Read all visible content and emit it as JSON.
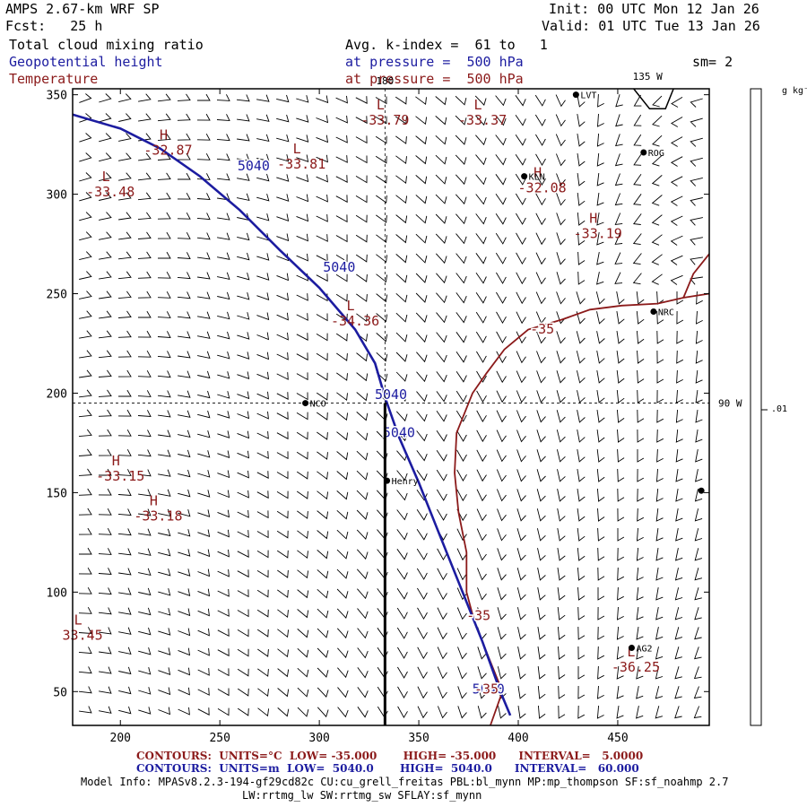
{
  "header": {
    "model": "AMPS 2.67-km WRF SP",
    "fcst": "Fcst:   25 h",
    "init": "Init: 00 UTC Mon 12 Jan 26",
    "valid": "Valid: 01 UTC Tue 13 Jan 26",
    "field1": "Total cloud mixing ratio",
    "field2": "Geopotential height",
    "field3": "Temperature",
    "avg": "Avg. k-index =  61 to   1",
    "pres1": "at pressure =  500 hPa",
    "pres2": "at pressure =  500 hPa",
    "sm": "sm= 2"
  },
  "footer": {
    "temp": "CONTOURS:  UNITS=°C  LOW= -35.000       HIGH= -35.000      INTERVAL=   5.0000",
    "height": "CONTOURS:  UNITS=m  LOW=  5040.0       HIGH=  5040.0      INTERVAL=   60.000",
    "info1": "Model Info: MPASv8.2.3-194-gf29cd82c CU:cu_grell_freitas PBL:bl_mynn MP:mp_thompson SF:sf_noahmp 2.7",
    "info2": "LW:rrtmg_lw SW:rrtmg_sw SFLAY:sf_mynn"
  },
  "colorbar": {
    "units": "g kg⁻¹",
    "tick_label": ".01"
  },
  "chart_data": {
    "type": "contour-map",
    "title": "Total cloud mixing ratio / Geopotential height / Temperature at 500 hPa",
    "xlim": [
      176,
      496
    ],
    "ylim": [
      33,
      353
    ],
    "x_ticks": [
      200,
      250,
      300,
      350,
      400,
      450
    ],
    "y_ticks": [
      50,
      100,
      150,
      200,
      250,
      300,
      350
    ],
    "meridian_labels": [
      {
        "text": "180",
        "x": 333,
        "y": 353
      },
      {
        "text": "135 W",
        "x": 465,
        "y": 353
      },
      {
        "text": "90 W",
        "x": 496,
        "y": 195
      }
    ],
    "crosshair": {
      "x": 333,
      "y": 195
    },
    "cross_section": {
      "x": 333,
      "y_from": 195,
      "y_to": 33
    },
    "height_contour": {
      "level": 5040,
      "points": [
        [
          176,
          340
        ],
        [
          200,
          333
        ],
        [
          220,
          323
        ],
        [
          240,
          309
        ],
        [
          260,
          292
        ],
        [
          280,
          272
        ],
        [
          300,
          253
        ],
        [
          318,
          232
        ],
        [
          328,
          215
        ],
        [
          333,
          198
        ],
        [
          340,
          178
        ],
        [
          350,
          155
        ],
        [
          360,
          130
        ],
        [
          372,
          100
        ],
        [
          382,
          75
        ],
        [
          391,
          50
        ],
        [
          396,
          38
        ]
      ],
      "labels": [
        {
          "text": "5040",
          "x": 267,
          "y": 312
        },
        {
          "text": "5040",
          "x": 310,
          "y": 261
        },
        {
          "text": "5040",
          "x": 336,
          "y": 197
        },
        {
          "text": "5040",
          "x": 340,
          "y": 178
        },
        {
          "text": "5040",
          "x": 385,
          "y": 49
        }
      ]
    },
    "temp_contours": [
      {
        "level": -35,
        "points": [
          [
            386,
            33
          ],
          [
            392,
            50
          ],
          [
            384,
            70
          ],
          [
            378,
            85
          ],
          [
            374,
            100
          ],
          [
            374,
            120
          ],
          [
            370,
            140
          ],
          [
            368,
            160
          ],
          [
            369,
            180
          ],
          [
            373,
            190
          ],
          [
            377,
            200
          ],
          [
            384,
            210
          ],
          [
            393,
            222
          ],
          [
            405,
            232
          ],
          [
            422,
            237
          ],
          [
            436,
            242
          ],
          [
            452,
            244
          ],
          [
            470,
            245
          ],
          [
            483,
            248
          ],
          [
            496,
            250
          ]
        ]
      },
      {
        "level": -35,
        "points": [
          [
            483,
            248
          ],
          [
            488,
            260
          ],
          [
            496,
            270
          ]
        ]
      }
    ],
    "temp_labels": [
      {
        "text": "-35",
        "x": 412,
        "y": 230
      },
      {
        "text": "-35",
        "x": 380,
        "y": 86
      },
      {
        "text": "-35",
        "x": 384,
        "y": 49
      }
    ],
    "extrema": [
      {
        "type": "H",
        "value": "-32.87",
        "x": 224,
        "y": 324
      },
      {
        "type": "L",
        "value": "-33.81",
        "x": 291,
        "y": 317
      },
      {
        "type": "L",
        "value": "-33.48",
        "x": 195,
        "y": 303
      },
      {
        "type": "L",
        "value": "-33.79",
        "x": 333,
        "y": 339
      },
      {
        "type": "L",
        "value": "-33.37",
        "x": 382,
        "y": 339
      },
      {
        "type": "H",
        "value": "-32.08",
        "x": 412,
        "y": 305
      },
      {
        "type": "H",
        "value": "-33.19",
        "x": 440,
        "y": 282
      },
      {
        "type": "L",
        "value": "-34.36",
        "x": 318,
        "y": 238
      },
      {
        "type": "H",
        "value": "-33.15",
        "x": 200,
        "y": 160
      },
      {
        "type": "H",
        "value": "-33.18",
        "x": 219,
        "y": 140
      },
      {
        "type": "L",
        "value": "33.45",
        "x": 181,
        "y": 80
      },
      {
        "type": "L",
        "value": "-36.25",
        "x": 459,
        "y": 64
      }
    ],
    "stations": [
      {
        "name": "LVT",
        "x": 429,
        "y": 350
      },
      {
        "name": "ROG",
        "x": 463,
        "y": 321
      },
      {
        "name": "KLN",
        "x": 403,
        "y": 309
      },
      {
        "name": "NRC",
        "x": 468,
        "y": 241
      },
      {
        "name": "NCO",
        "x": 293,
        "y": 195
      },
      {
        "name": "Henry",
        "x": 334,
        "y": 156
      },
      {
        "name": "AG2",
        "x": 457,
        "y": 72
      },
      {
        "name": "",
        "x": 492,
        "y": 151
      }
    ],
    "coastline": [
      [
        458,
        353
      ],
      [
        466,
        343
      ],
      [
        474,
        343
      ],
      [
        478,
        353
      ]
    ],
    "colors": {
      "height": "#1c1ca0",
      "temp": "#8b1a1a",
      "axis": "#000000"
    }
  }
}
